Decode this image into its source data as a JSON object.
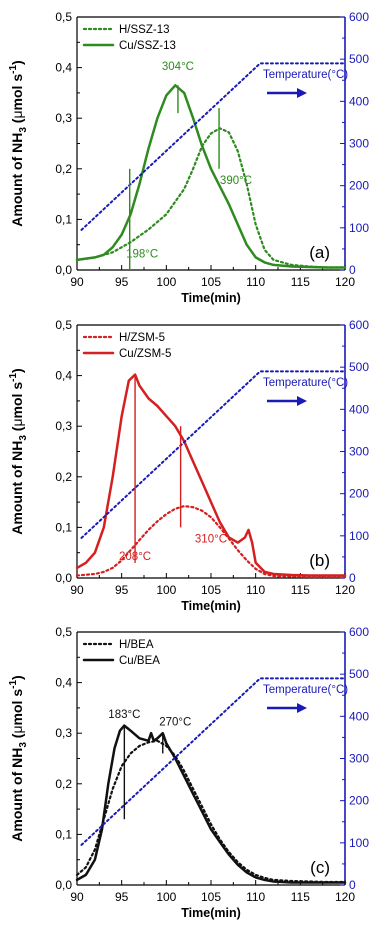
{
  "chart_data": [
    {
      "type": "line",
      "panel_label": "(a)",
      "xlabel": "Time(min)",
      "ylabel_main": "Amount of NH",
      "ylabel_sub": "3",
      "ylabel_units_pre": " (",
      "ylabel_mu": "μ",
      "ylabel_units_mid": "mol s",
      "ylabel_sup": "-1",
      "ylabel_units_post": ")",
      "xlim": [
        90,
        120
      ],
      "ylim": [
        0,
        0.5
      ],
      "y2lim": [
        0,
        600
      ],
      "x_ticks": [
        "90",
        "95",
        "100",
        "105",
        "110",
        "115",
        "120"
      ],
      "y_ticks": [
        "0,0",
        "0,1",
        "0,2",
        "0,3",
        "0,4",
        "0,5"
      ],
      "y2_ticks": [
        "0",
        "100",
        "200",
        "300",
        "400",
        "500",
        "600"
      ],
      "temperature_label": "Temperature(°C)",
      "legend_position": "top-left",
      "color": "#2e8b1f",
      "axis2_color": "#1a1ab8",
      "series": [
        {
          "name": "H/SSZ-13",
          "style": "dotted",
          "x": [
            90,
            92,
            94,
            96,
            98,
            100,
            102,
            103,
            104,
            105,
            106,
            107,
            108,
            109,
            110,
            111,
            112,
            114,
            116,
            118,
            120
          ],
          "y": [
            0.02,
            0.025,
            0.035,
            0.055,
            0.08,
            0.11,
            0.16,
            0.2,
            0.245,
            0.27,
            0.28,
            0.272,
            0.235,
            0.17,
            0.09,
            0.04,
            0.02,
            0.01,
            0.007,
            0.005,
            0.005
          ]
        },
        {
          "name": "Cu/SSZ-13",
          "style": "solid",
          "x": [
            90,
            92,
            93,
            94,
            95,
            96,
            97,
            98,
            99,
            100,
            101,
            102,
            103,
            104,
            105,
            106,
            107,
            108,
            109,
            110,
            111,
            112,
            114,
            116,
            118,
            120
          ],
          "y": [
            0.02,
            0.025,
            0.03,
            0.045,
            0.07,
            0.11,
            0.17,
            0.24,
            0.3,
            0.345,
            0.365,
            0.35,
            0.3,
            0.245,
            0.2,
            0.165,
            0.13,
            0.09,
            0.05,
            0.025,
            0.015,
            0.01,
            0.007,
            0.006,
            0.005,
            0.005
          ]
        },
        {
          "name": "Temperature(°C)",
          "style": "dotted",
          "axis": "right",
          "x": [
            90.5,
            110.5,
            120
          ],
          "y": [
            95,
            490,
            490
          ]
        }
      ],
      "annotations": [
        {
          "text": "304°C",
          "x": 101.3
        },
        {
          "text": "390°C",
          "x": 105.9
        },
        {
          "text": "198°C",
          "x": 95.9
        }
      ]
    },
    {
      "type": "line",
      "panel_label": "(b)",
      "xlabel": "Time(min)",
      "ylabel_main": "Amount of NH",
      "ylabel_sub": "3",
      "ylabel_units_pre": " (",
      "ylabel_mu": "μ",
      "ylabel_units_mid": "mol s",
      "ylabel_sup": "-1",
      "ylabel_units_post": ")",
      "xlim": [
        90,
        120
      ],
      "ylim": [
        0,
        0.5
      ],
      "y2lim": [
        0,
        600
      ],
      "x_ticks": [
        "90",
        "95",
        "100",
        "105",
        "110",
        "115",
        "120"
      ],
      "y_ticks": [
        "0,0",
        "0,1",
        "0,2",
        "0,3",
        "0,4",
        "0,5"
      ],
      "y2_ticks": [
        "0",
        "100",
        "200",
        "300",
        "400",
        "500",
        "600"
      ],
      "temperature_label": "Temperature(°C)",
      "legend_position": "top-left",
      "color": "#d42020",
      "axis2_color": "#1a1ab8",
      "series": [
        {
          "name": "H/ZSM-5",
          "style": "dotted",
          "x": [
            90,
            92,
            93,
            94,
            95,
            96,
            97,
            98,
            99,
            100,
            101,
            102,
            103,
            104,
            105,
            106,
            107,
            108,
            109,
            110,
            111,
            112,
            114,
            116,
            118,
            120
          ],
          "y": [
            0.005,
            0.008,
            0.012,
            0.02,
            0.035,
            0.055,
            0.075,
            0.095,
            0.112,
            0.126,
            0.137,
            0.142,
            0.14,
            0.133,
            0.12,
            0.1,
            0.078,
            0.055,
            0.035,
            0.018,
            0.008,
            0.004,
            0.003,
            0.002,
            0.002,
            0.002
          ]
        },
        {
          "name": "Cu/ZSM-5",
          "style": "solid",
          "x": [
            90,
            91,
            92,
            93,
            94,
            95,
            95.8,
            96.5,
            97,
            98,
            99,
            100,
            101,
            102,
            103,
            104,
            105,
            106,
            107,
            108,
            108.8,
            109.2,
            109.6,
            110,
            111,
            112,
            114,
            116,
            118,
            120
          ],
          "y": [
            0.02,
            0.03,
            0.05,
            0.1,
            0.2,
            0.32,
            0.39,
            0.402,
            0.38,
            0.355,
            0.34,
            0.32,
            0.3,
            0.27,
            0.23,
            0.19,
            0.15,
            0.11,
            0.08,
            0.07,
            0.08,
            0.095,
            0.07,
            0.03,
            0.012,
            0.008,
            0.006,
            0.005,
            0.005,
            0.005
          ]
        },
        {
          "name": "Temperature(°C)",
          "style": "dotted",
          "axis": "right",
          "x": [
            90.5,
            110.5,
            120
          ],
          "y": [
            95,
            490,
            490
          ]
        }
      ],
      "annotations": [
        {
          "text": "208°C",
          "x": 96.5
        },
        {
          "text": "310°C",
          "x": 101.6
        }
      ]
    },
    {
      "type": "line",
      "panel_label": "(c)",
      "xlabel": "Time(min)",
      "ylabel_main": "Amount of NH",
      "ylabel_sub": "3",
      "ylabel_units_pre": " (",
      "ylabel_mu": "μ",
      "ylabel_units_mid": "mol s",
      "ylabel_sup": "-1",
      "ylabel_units_post": ")",
      "xlim": [
        90,
        120
      ],
      "ylim": [
        0,
        0.5
      ],
      "y2lim": [
        0,
        600
      ],
      "x_ticks": [
        "90",
        "95",
        "100",
        "105",
        "110",
        "115",
        "120"
      ],
      "y_ticks": [
        "0,0",
        "0,1",
        "0,2",
        "0,3",
        "0,4",
        "0,5"
      ],
      "y2_ticks": [
        "0",
        "100",
        "200",
        "300",
        "400",
        "500",
        "600"
      ],
      "temperature_label": "Temperature(°C)",
      "legend_position": "top-left",
      "color": "#111111",
      "axis2_color": "#1a1ab8",
      "series": [
        {
          "name": "H/BEA",
          "style": "dotted",
          "x": [
            90,
            91,
            92,
            93,
            94,
            95,
            96,
            97,
            98,
            99,
            100,
            101,
            102,
            103,
            104,
            105,
            106,
            107,
            108,
            109,
            110,
            111,
            112,
            114,
            116,
            118,
            120
          ],
          "y": [
            0.02,
            0.035,
            0.07,
            0.13,
            0.19,
            0.235,
            0.26,
            0.275,
            0.282,
            0.285,
            0.275,
            0.255,
            0.225,
            0.19,
            0.155,
            0.12,
            0.09,
            0.065,
            0.045,
            0.03,
            0.02,
            0.014,
            0.01,
            0.008,
            0.007,
            0.006,
            0.006
          ]
        },
        {
          "name": "Cu/BEA",
          "style": "solid",
          "x": [
            90,
            91,
            92,
            92.8,
            93.5,
            94.2,
            94.8,
            95.3,
            96,
            97,
            98,
            98.3,
            98.6,
            99,
            99.6,
            100,
            101,
            102,
            103,
            104,
            105,
            106,
            107,
            108,
            109,
            110,
            111,
            112,
            114,
            116,
            118,
            120
          ],
          "y": [
            0.01,
            0.02,
            0.05,
            0.11,
            0.2,
            0.27,
            0.305,
            0.315,
            0.305,
            0.29,
            0.285,
            0.3,
            0.285,
            0.29,
            0.3,
            0.28,
            0.25,
            0.215,
            0.18,
            0.145,
            0.11,
            0.085,
            0.06,
            0.04,
            0.025,
            0.015,
            0.01,
            0.007,
            0.005,
            0.005,
            0.005,
            0.005
          ]
        },
        {
          "name": "Temperature(°C)",
          "style": "dotted",
          "axis": "right",
          "x": [
            90.5,
            110.5,
            120
          ],
          "y": [
            95,
            490,
            490
          ]
        }
      ],
      "annotations": [
        {
          "text": "183°C",
          "x": 95.3
        },
        {
          "text": "270°C",
          "x": 99.6
        }
      ]
    }
  ]
}
